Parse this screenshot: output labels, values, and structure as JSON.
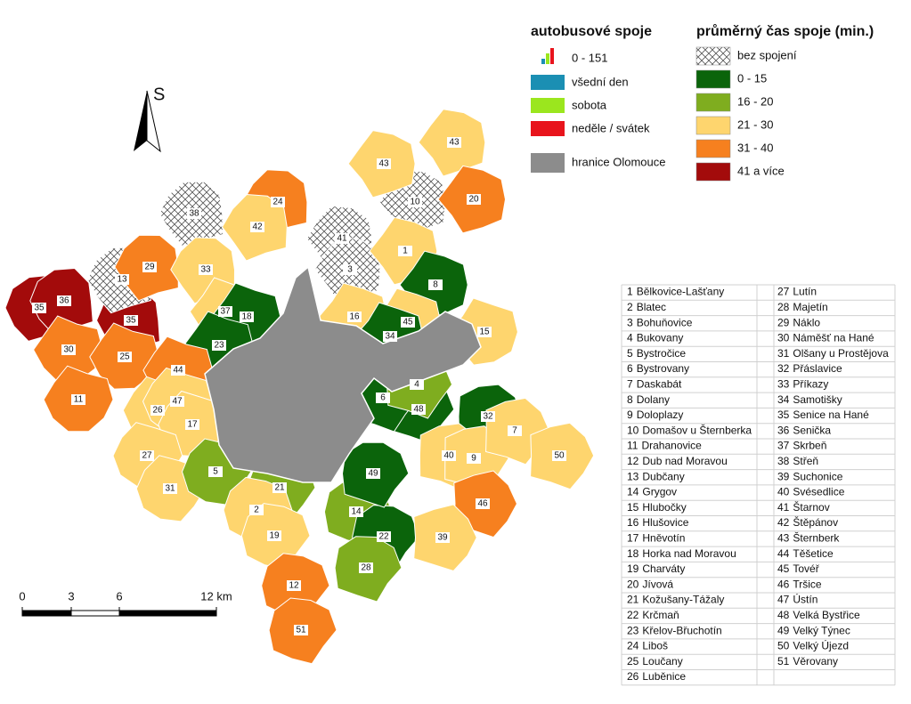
{
  "north": "S",
  "scale": {
    "labels": [
      "0",
      "3",
      "6",
      "12 km"
    ]
  },
  "bus_legend": {
    "title": "autobusové spoje",
    "range": "0 - 151",
    "items": [
      {
        "label": "všední den",
        "color": "#1b8fb3"
      },
      {
        "label": "sobota",
        "color": "#9be61e"
      },
      {
        "label": "neděle / svátek",
        "color": "#e8141c"
      }
    ],
    "boundary": {
      "label": "hranice Olomouce",
      "color": "#8c8c8c"
    }
  },
  "time_legend": {
    "title": "průměrný čas spoje (min.)",
    "items": [
      {
        "label": "bez spojení",
        "color": "hatch"
      },
      {
        "label": "0 - 15",
        "color": "#0b640b"
      },
      {
        "label": "16 - 20",
        "color": "#7fad1f"
      },
      {
        "label": "21 - 30",
        "color": "#fed56e"
      },
      {
        "label": "31 - 40",
        "color": "#f6801f"
      },
      {
        "label": "41 a více",
        "color": "#a30b0b"
      }
    ]
  },
  "regions": [
    {
      "id": 35,
      "class": 5
    },
    {
      "id": 36,
      "class": 5
    },
    {
      "id": 35,
      "class": 5
    },
    {
      "id": 13,
      "class": 0
    },
    {
      "id": 38,
      "class": 0
    },
    {
      "id": 29,
      "class": 4
    },
    {
      "id": 33,
      "class": 3
    },
    {
      "id": 24,
      "class": 4
    },
    {
      "id": 42,
      "class": 3
    },
    {
      "id": 41,
      "class": 0
    },
    {
      "id": 3,
      "class": 0
    },
    {
      "id": 10,
      "class": 0
    },
    {
      "id": 43,
      "class": 3
    },
    {
      "id": 43,
      "class": 3
    },
    {
      "id": 20,
      "class": 4
    },
    {
      "id": 1,
      "class": 3
    },
    {
      "id": 8,
      "class": 1
    },
    {
      "id": 16,
      "class": 3
    },
    {
      "id": 45,
      "class": 3
    },
    {
      "id": 34,
      "class": 1
    },
    {
      "id": 15,
      "class": 3
    },
    {
      "id": 37,
      "class": 3
    },
    {
      "id": 18,
      "class": 1
    },
    {
      "id": 23,
      "class": 1
    },
    {
      "id": 30,
      "class": 4
    },
    {
      "id": 25,
      "class": 4
    },
    {
      "id": 44,
      "class": 4
    },
    {
      "id": 11,
      "class": 4
    },
    {
      "id": 26,
      "class": 3
    },
    {
      "id": 47,
      "class": 3
    },
    {
      "id": 17,
      "class": 3
    },
    {
      "id": 27,
      "class": 3
    },
    {
      "id": 31,
      "class": 3
    },
    {
      "id": 5,
      "class": 2
    },
    {
      "id": 21,
      "class": 2
    },
    {
      "id": 2,
      "class": 3
    },
    {
      "id": 19,
      "class": 3
    },
    {
      "id": 12,
      "class": 4
    },
    {
      "id": 51,
      "class": 4
    },
    {
      "id": 14,
      "class": 2
    },
    {
      "id": 22,
      "class": 1
    },
    {
      "id": 28,
      "class": 2
    },
    {
      "id": 49,
      "class": 1
    },
    {
      "id": 48,
      "class": 1
    },
    {
      "id": 6,
      "class": 1
    },
    {
      "id": 4,
      "class": 2
    },
    {
      "id": 32,
      "class": 1
    },
    {
      "id": 40,
      "class": 3
    },
    {
      "id": 9,
      "class": 3
    },
    {
      "id": 7,
      "class": 3
    },
    {
      "id": 50,
      "class": 3
    },
    {
      "id": 46,
      "class": 4
    },
    {
      "id": 39,
      "class": 3
    }
  ],
  "municipalities": [
    {
      "id": 1,
      "name": "Bělkovice-Lašťany"
    },
    {
      "id": 2,
      "name": "Blatec"
    },
    {
      "id": 3,
      "name": "Bohuňovice"
    },
    {
      "id": 4,
      "name": "Bukovany"
    },
    {
      "id": 5,
      "name": "Bystročice"
    },
    {
      "id": 6,
      "name": "Bystrovany"
    },
    {
      "id": 7,
      "name": "Daskabát"
    },
    {
      "id": 8,
      "name": "Dolany"
    },
    {
      "id": 9,
      "name": "Doloplazy"
    },
    {
      "id": 10,
      "name": "Domašov u Šternberka"
    },
    {
      "id": 11,
      "name": "Drahanovice"
    },
    {
      "id": 12,
      "name": "Dub nad Moravou"
    },
    {
      "id": 13,
      "name": "Dubčany"
    },
    {
      "id": 14,
      "name": "Grygov"
    },
    {
      "id": 15,
      "name": "Hlubočky"
    },
    {
      "id": 16,
      "name": "Hlušovice"
    },
    {
      "id": 17,
      "name": "Hněvotín"
    },
    {
      "id": 18,
      "name": "Horka nad Moravou"
    },
    {
      "id": 19,
      "name": "Charváty"
    },
    {
      "id": 20,
      "name": "Jívová"
    },
    {
      "id": 21,
      "name": "Kožušany-Tážaly"
    },
    {
      "id": 22,
      "name": "Krčmaň"
    },
    {
      "id": 23,
      "name": "Křelov-Břuchotín"
    },
    {
      "id": 24,
      "name": "Liboš"
    },
    {
      "id": 25,
      "name": "Loučany"
    },
    {
      "id": 26,
      "name": "Luběnice"
    },
    {
      "id": 27,
      "name": "Lutín"
    },
    {
      "id": 28,
      "name": "Majetín"
    },
    {
      "id": 29,
      "name": "Náklo"
    },
    {
      "id": 30,
      "name": "Náměšť na Hané"
    },
    {
      "id": 31,
      "name": "Olšany u Prostějova"
    },
    {
      "id": 32,
      "name": "Přáslavice"
    },
    {
      "id": 33,
      "name": "Příkazy"
    },
    {
      "id": 34,
      "name": "Samotišky"
    },
    {
      "id": 35,
      "name": "Senice na Hané"
    },
    {
      "id": 36,
      "name": "Senička"
    },
    {
      "id": 37,
      "name": "Skrbeň"
    },
    {
      "id": 38,
      "name": "Střeň"
    },
    {
      "id": 39,
      "name": "Suchonice"
    },
    {
      "id": 40,
      "name": "Svésedlice"
    },
    {
      "id": 41,
      "name": "Štarnov"
    },
    {
      "id": 42,
      "name": "Štěpánov"
    },
    {
      "id": 43,
      "name": "Šternberk"
    },
    {
      "id": 44,
      "name": "Těšetice"
    },
    {
      "id": 45,
      "name": "Tovéř"
    },
    {
      "id": 46,
      "name": "Tršice"
    },
    {
      "id": 47,
      "name": "Ústín"
    },
    {
      "id": 48,
      "name": "Velká Bystřice"
    },
    {
      "id": 49,
      "name": "Velký Týnec"
    },
    {
      "id": 50,
      "name": "Velký Újezd"
    },
    {
      "id": 51,
      "name": "Věrovany"
    }
  ]
}
